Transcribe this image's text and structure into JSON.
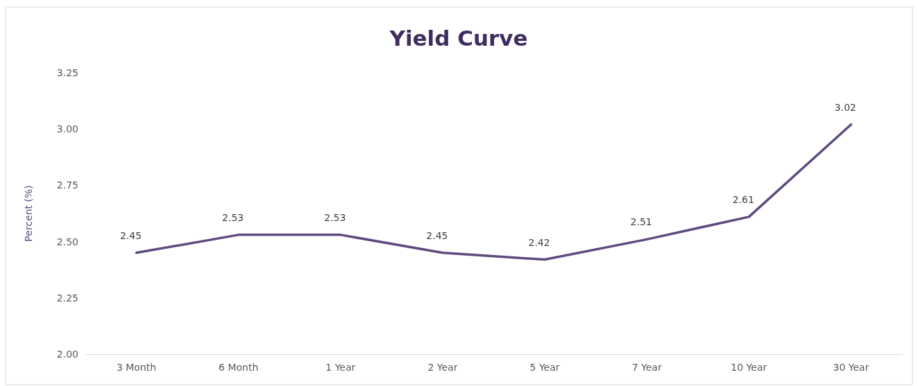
{
  "chart_data": {
    "type": "line",
    "title": "Yield Curve",
    "ylabel": "Percent (%)",
    "categories": [
      "3 Month",
      "6 Month",
      "1 Year",
      "2 Year",
      "5 Year",
      "7 Year",
      "10 Year",
      "30 Year"
    ],
    "series": [
      {
        "color": "#5e4a80",
        "values": [
          2.45,
          2.53,
          2.53,
          2.45,
          2.42,
          2.51,
          2.61,
          3.02
        ]
      }
    ],
    "ylim": [
      2.0,
      3.25
    ],
    "yticks": [
      {
        "value": 2.0,
        "label": "2.00"
      },
      {
        "value": 2.25,
        "label": "2.25"
      },
      {
        "value": 2.5,
        "label": "2.50"
      },
      {
        "value": 2.75,
        "label": "2.75"
      },
      {
        "value": 3.0,
        "label": "3.00"
      },
      {
        "value": 3.25,
        "label": "3.25"
      }
    ],
    "grid": false,
    "marker": "none",
    "line_style": "solid",
    "data_labels": true
  }
}
